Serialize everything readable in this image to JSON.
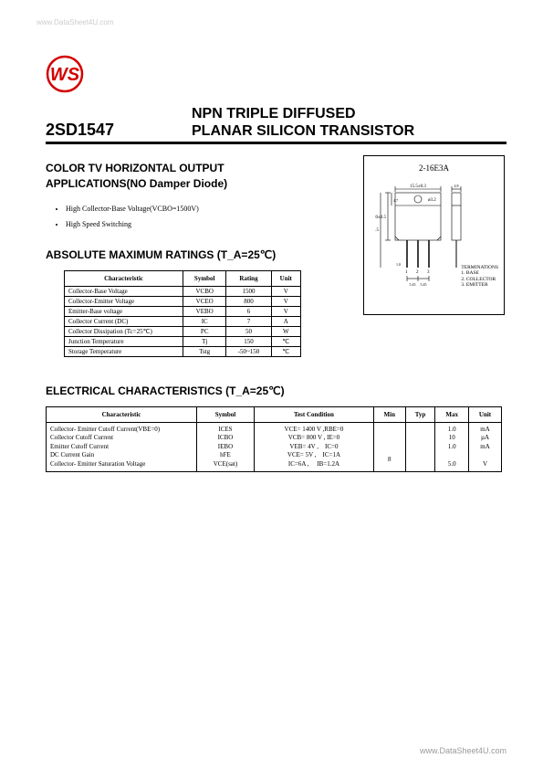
{
  "watermark_top": "www.DataSheet4U.com",
  "watermark_bottom": "www.DataSheet4U.com",
  "logo": {
    "text": "WS",
    "outer_color": "#d40000",
    "inner_color": "#d40000"
  },
  "part_number": "2SD1547",
  "title_line1": "NPN    TRIPLE DIFFUSED",
  "title_line2": "PLANAR SILICON TRANSISTOR",
  "application_heading_line1": "COLOR TV HORIZONTAL OUTPUT",
  "application_heading_line2": "APPLICATIONS(NO Damper Diode)",
  "features": [
    "High Collector-Base Voltage(VCBO=1500V)",
    "High Speed Switching"
  ],
  "ratings_heading": "ABSOLUTE MAXIMUM RATINGS (T_A=25℃)",
  "ratings_table": {
    "columns": [
      "Characteristic",
      "Symbol",
      "Rating",
      "Unit"
    ],
    "rows": [
      [
        "Collector-Base Voltage",
        "VCBO",
        "1500",
        "V"
      ],
      [
        "Collector-Emitter Voltage",
        "VCEO",
        "800",
        "V"
      ],
      [
        "Emitter-Base voltage",
        "VEBO",
        "6",
        "V"
      ],
      [
        "Collector Current (DC)",
        "IC",
        "7",
        "A"
      ],
      [
        "Collector Dissipation (Tc=25℃)",
        "PC",
        "50",
        "W"
      ],
      [
        "Junction Temperature",
        "Tj",
        "150",
        "℃"
      ],
      [
        "Storage Temperature",
        "Tstg",
        "-50~150",
        "℃"
      ]
    ]
  },
  "elec_heading": "ELECTRICAL CHARACTERISTICS (T_A=25℃)",
  "elec_table": {
    "columns": [
      "Characteristic",
      "Symbol",
      "Test Condition",
      "Min",
      "Typ",
      "Max",
      "Unit"
    ],
    "rows": [
      [
        "Collector- Emitter Cutoff Current(VBE=0)",
        "ICES",
        "VCE= 1400 V ,RBE=0",
        "",
        "",
        "1.0",
        "mA"
      ],
      [
        "Collector Cutoff Current",
        "ICBO",
        "VCB= 800 V , IE=0",
        "",
        "",
        "10",
        "µA"
      ],
      [
        "Emitter Cutoff Current",
        "IEBO",
        "VEB= 4V ,    IC=0",
        "",
        "",
        "1.0",
        "mA"
      ],
      [
        "DC Current Gain",
        "hFE",
        "VCE= 5V ,    IC=1A",
        "8",
        "",
        "",
        ""
      ],
      [
        "Collector- Emitter Saturation Voltage",
        "VCE(sat)",
        "IC=6A ,     IB=1.2A",
        "",
        "",
        "5.0",
        "V"
      ]
    ]
  },
  "package": {
    "title": "2-16E3A",
    "term_heading": "TERMINATIONS",
    "terms": [
      "1. BASE",
      "2. COLLECTOR",
      "3. EMITTER"
    ],
    "dim_top": "15.5±0.3",
    "dim_hole": "ø3.2",
    "dim_h1": "20±0.5",
    "dim_h2": "18.5",
    "dim_h3": "4.7",
    "dim_lead": "1.0",
    "dim_spacing1": "5.45",
    "dim_spacing2": "5.45",
    "dim_thick": "4.8"
  }
}
